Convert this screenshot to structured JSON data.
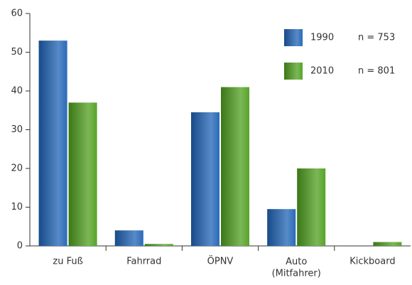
{
  "chart_data": {
    "type": "bar",
    "categories": [
      "zu Fuß",
      "Fahrrad",
      "ÖPNV",
      "Auto\n(Mitfahrer)",
      "Kickboard"
    ],
    "series": [
      {
        "name": "1990",
        "sample": "n = 753",
        "color": "#1f63b5",
        "values": [
          53,
          4,
          34.5,
          9.5,
          0
        ]
      },
      {
        "name": "2010",
        "sample": "n = 801",
        "color": "#4f9f1f",
        "values": [
          37,
          0.5,
          41,
          20,
          1
        ]
      }
    ],
    "ylim": [
      0,
      60
    ],
    "yticks": [
      0,
      10,
      20,
      30,
      40,
      50,
      60
    ],
    "legend": "upper right"
  }
}
